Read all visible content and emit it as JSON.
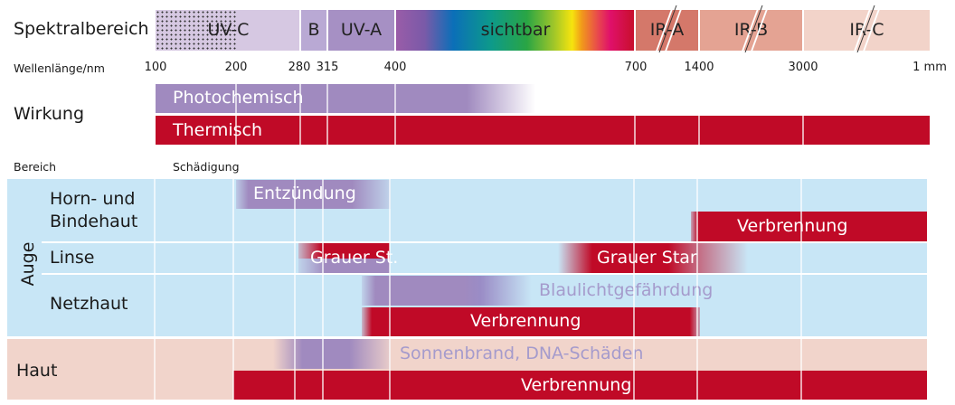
{
  "labels": {
    "spektralbereich": "Spektralbereich",
    "wellenlaenge": "Wellenlänge/nm",
    "wirkung": "Wirkung",
    "bereich": "Bereich",
    "schaedigung": "Schädigung"
  },
  "spectrum": {
    "uvc": "UV-C",
    "uvb": "B",
    "uva": "UV-A",
    "visible": "sichtbar",
    "ira": "IR-A",
    "irb": "IR-B",
    "irc": "IR-C"
  },
  "ticks": [
    "100",
    "200",
    "280",
    "315",
    "400",
    "700",
    "1400",
    "3000",
    "1 mm"
  ],
  "effects": {
    "photochemical": "Photochemisch",
    "thermal": "Thermisch"
  },
  "regions": {
    "eye": "Auge",
    "cornea": "Horn- und\nBindehaut",
    "cornea_line1": "Horn- und",
    "cornea_line2": "Bindehaut",
    "lens": "Linse",
    "retina": "Netzhaut",
    "skin": "Haut"
  },
  "damages": {
    "cornea_uv": "Entzündung",
    "cornea_ir": "Verbrennung",
    "lens_uv": "Grauer St.",
    "lens_ir": "Grauer Star",
    "retina_blue": "Blaulichtgefährdung",
    "retina_burn": "Verbrennung",
    "skin_uv": "Sonnenbrand, DNA-Schäden",
    "skin_burn": "Verbrennung"
  },
  "colors": {
    "red": "#c00a27",
    "purple": "#a08abf",
    "eye_bg": "#c8e6f6",
    "skin_bg": "#f1d4cb"
  }
}
